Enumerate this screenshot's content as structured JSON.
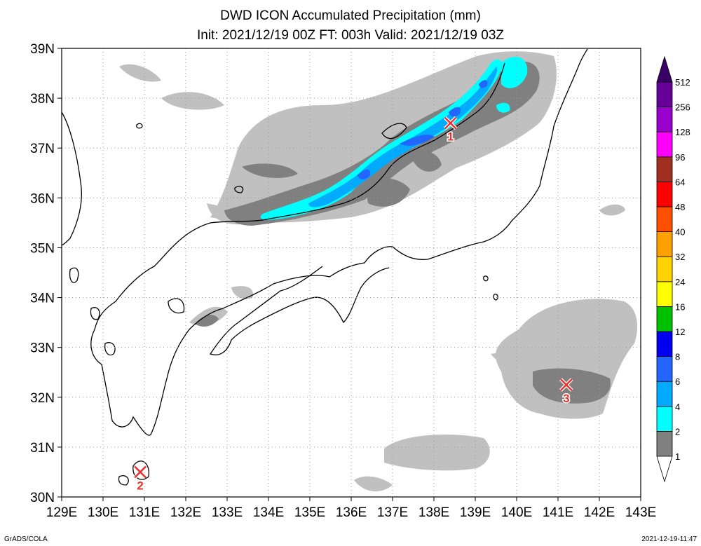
{
  "chart_data": {
    "type": "heatmap",
    "title": "DWD ICON Accumulated Precipitation (mm)",
    "subtitle": "Init: 2021/12/19 00Z  FT: 003h  Valid: 2021/12/19 03Z",
    "x_ticks": [
      "129E",
      "130E",
      "131E",
      "132E",
      "133E",
      "134E",
      "135E",
      "136E",
      "137E",
      "138E",
      "139E",
      "140E",
      "141E",
      "142E",
      "143E"
    ],
    "y_ticks": [
      "30N",
      "31N",
      "32N",
      "33N",
      "34N",
      "35N",
      "36N",
      "37N",
      "38N",
      "39N"
    ],
    "xlim": [
      129,
      143
    ],
    "ylim": [
      30,
      39
    ],
    "grid": true,
    "colorbar": {
      "levels": [
        "1",
        "2",
        "4",
        "6",
        "8",
        "12",
        "16",
        "24",
        "32",
        "40",
        "48",
        "64",
        "96",
        "128",
        "256",
        "512"
      ],
      "colors": [
        "#c0c0c0",
        "#808080",
        "#00ffff",
        "#00aaff",
        "#2266ff",
        "#0000ee",
        "#00c000",
        "#ffff00",
        "#ffd200",
        "#ffa000",
        "#ff5000",
        "#ff0000",
        "#a03020",
        "#ff00ff",
        "#9900cc",
        "#660099",
        "#3a0066"
      ]
    },
    "markers": [
      {
        "label": "1",
        "lon": 138.4,
        "lat": 37.5
      },
      {
        "label": "2",
        "lon": 130.9,
        "lat": 30.5
      },
      {
        "label": "3",
        "lon": 141.2,
        "lat": 32.25
      }
    ]
  },
  "footer": {
    "left": "GrADS/COLA",
    "right": "2021-12-19-11:47"
  }
}
